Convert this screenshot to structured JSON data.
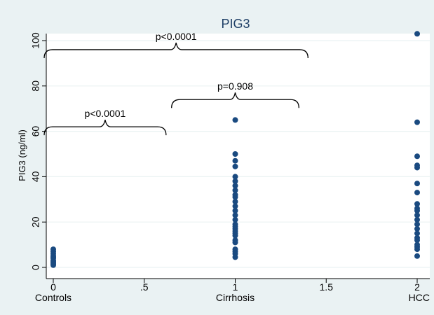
{
  "chart_data": {
    "type": "scatter",
    "title": "PIG3",
    "xlabel": "",
    "ylabel": "PIG3 (ng/ml)",
    "xlim": [
      0,
      2
    ],
    "ylim": [
      0,
      105
    ],
    "x_ticks": [
      {
        "value": 0,
        "label": "0"
      },
      {
        "value": 0.5,
        "label": ".5"
      },
      {
        "value": 1,
        "label": "1"
      },
      {
        "value": 1.5,
        "label": "1.5"
      },
      {
        "value": 2,
        "label": "2"
      }
    ],
    "y_ticks": [
      0,
      20,
      40,
      60,
      80,
      100
    ],
    "group_labels": [
      {
        "x": 0,
        "label": "Controls"
      },
      {
        "x": 1,
        "label": "Cirrhosis"
      },
      {
        "x": 2,
        "label": "HCC"
      }
    ],
    "grid": "horizontal",
    "series": [
      {
        "values": [
          {
            "x": 0,
            "y": 8
          },
          {
            "x": 0,
            "y": 7
          },
          {
            "x": 0,
            "y": 6
          },
          {
            "x": 0,
            "y": 5
          },
          {
            "x": 0,
            "y": 4.5
          },
          {
            "x": 0,
            "y": 4
          },
          {
            "x": 0,
            "y": 3
          },
          {
            "x": 0,
            "y": 2.5
          },
          {
            "x": 0,
            "y": 2
          },
          {
            "x": 0,
            "y": 1.5
          },
          {
            "x": 0,
            "y": 1
          },
          {
            "x": 1,
            "y": 65
          },
          {
            "x": 1,
            "y": 50
          },
          {
            "x": 1,
            "y": 47
          },
          {
            "x": 1,
            "y": 44.5
          },
          {
            "x": 1,
            "y": 40
          },
          {
            "x": 1,
            "y": 38
          },
          {
            "x": 1,
            "y": 36
          },
          {
            "x": 1,
            "y": 34
          },
          {
            "x": 1,
            "y": 32
          },
          {
            "x": 1,
            "y": 31
          },
          {
            "x": 1,
            "y": 29
          },
          {
            "x": 1,
            "y": 27
          },
          {
            "x": 1,
            "y": 25
          },
          {
            "x": 1,
            "y": 23
          },
          {
            "x": 1,
            "y": 21
          },
          {
            "x": 1,
            "y": 19
          },
          {
            "x": 1,
            "y": 18
          },
          {
            "x": 1,
            "y": 17
          },
          {
            "x": 1,
            "y": 16
          },
          {
            "x": 1,
            "y": 15
          },
          {
            "x": 1,
            "y": 14
          },
          {
            "x": 1,
            "y": 12
          },
          {
            "x": 1,
            "y": 11
          },
          {
            "x": 1,
            "y": 8
          },
          {
            "x": 1,
            "y": 7
          },
          {
            "x": 1,
            "y": 6
          },
          {
            "x": 1,
            "y": 4.5
          },
          {
            "x": 2,
            "y": 103
          },
          {
            "x": 2,
            "y": 64
          },
          {
            "x": 2,
            "y": 49
          },
          {
            "x": 2,
            "y": 45
          },
          {
            "x": 2,
            "y": 44
          },
          {
            "x": 2,
            "y": 37
          },
          {
            "x": 2,
            "y": 33
          },
          {
            "x": 2,
            "y": 28
          },
          {
            "x": 2,
            "y": 26
          },
          {
            "x": 2,
            "y": 25
          },
          {
            "x": 2,
            "y": 23
          },
          {
            "x": 2,
            "y": 21
          },
          {
            "x": 2,
            "y": 19
          },
          {
            "x": 2,
            "y": 17
          },
          {
            "x": 2,
            "y": 15
          },
          {
            "x": 2,
            "y": 13
          },
          {
            "x": 2,
            "y": 12
          },
          {
            "x": 2,
            "y": 10
          },
          {
            "x": 2,
            "y": 9
          },
          {
            "x": 2,
            "y": 8
          },
          {
            "x": 2,
            "y": 5
          }
        ]
      }
    ],
    "annotations": [
      {
        "text": "p<0.0001",
        "x_start": -0.05,
        "x_end": 0.62,
        "y": 62
      },
      {
        "text": "p=0.908",
        "x_start": 0.65,
        "x_end": 1.35,
        "y": 74
      },
      {
        "text": "p<0.0001",
        "x_start": -0.05,
        "x_end": 1.4,
        "y": 96
      }
    ]
  }
}
